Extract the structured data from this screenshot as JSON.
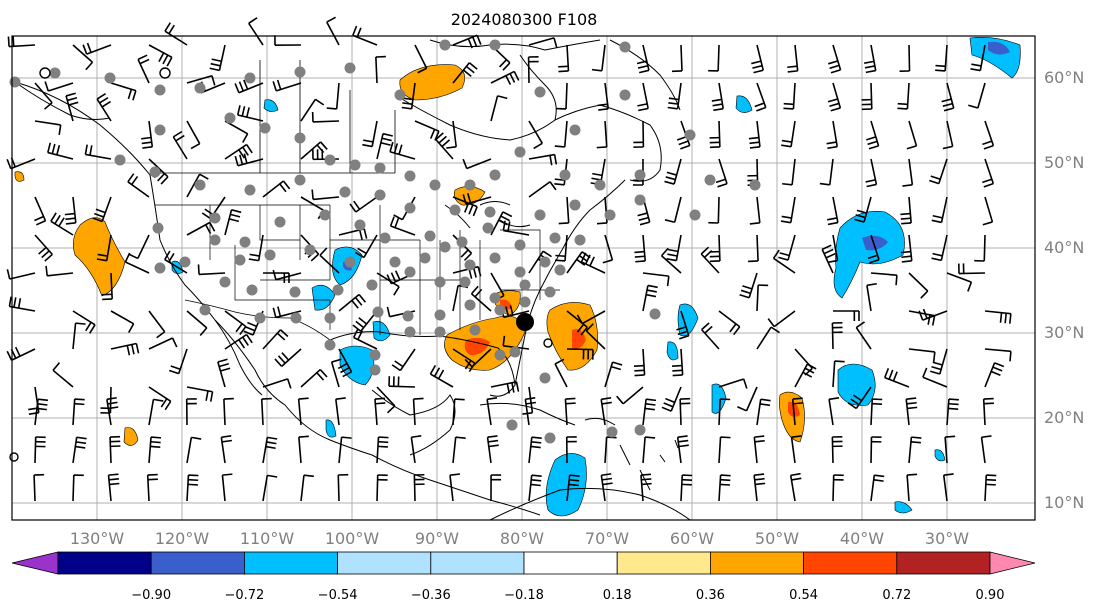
{
  "title": "2024080300 F108",
  "lat_labels": [
    "60°N",
    "50°N",
    "40°N",
    "30°N",
    "20°N",
    "10°N"
  ],
  "lon_labels": [
    "130°W",
    "120°W",
    "110°W",
    "100°W",
    "90°W",
    "80°W",
    "70°W",
    "60°W",
    "50°W",
    "40°W",
    "30°W"
  ],
  "colorbar": {
    "ticks": [
      "−0.90",
      "−0.72",
      "−0.54",
      "−0.36",
      "−0.18",
      "0.18",
      "0.36",
      "0.54",
      "0.72",
      "0.90"
    ],
    "colors": [
      "#9933cc",
      "#00008b",
      "#3a5fcd",
      "#00bfff",
      "#b0e2ff",
      "#ffffff",
      "#ffe98c",
      "#ffa500",
      "#ff4500",
      "#b22222",
      "#ff88b0"
    ]
  },
  "map_colors": {
    "neg1": "#00bfff",
    "neg2": "#3a5fcd",
    "pos1": "#ffa500",
    "pos2": "#ff4500",
    "station": "#808080",
    "grid": "#b0b0b0"
  }
}
